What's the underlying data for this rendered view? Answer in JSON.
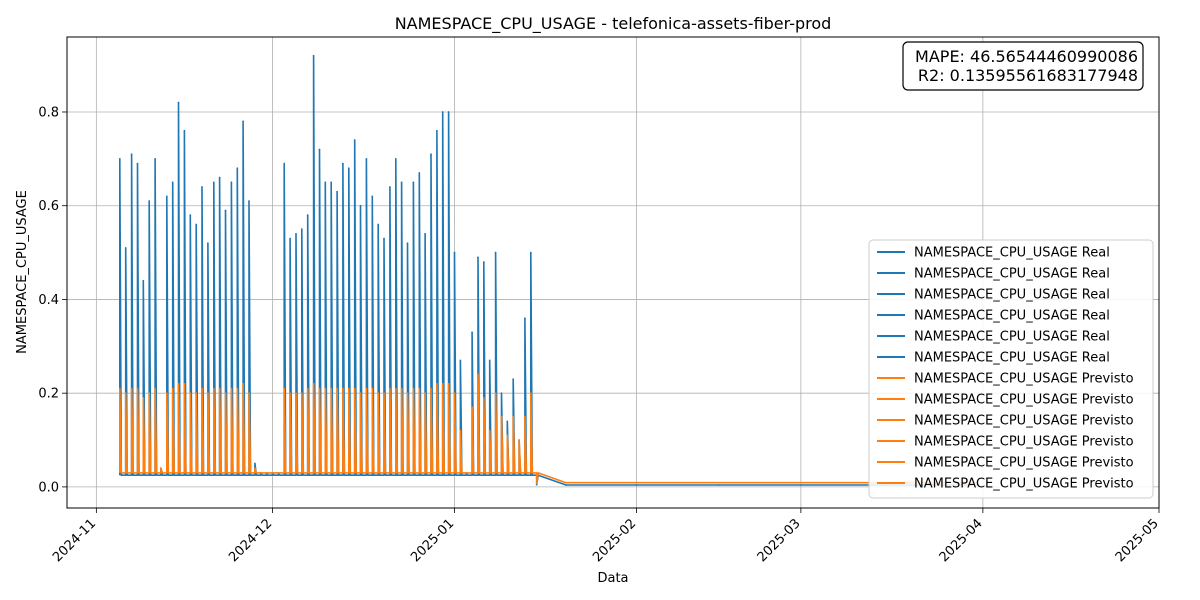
{
  "chart_data": {
    "type": "line",
    "title": "NAMESPACE_CPU_USAGE - telefonica-assets-fiber-prod",
    "xlabel": "Data",
    "ylabel": "NAMESPACE_CPU_USAGE",
    "x_tick_labels": [
      "2024-11",
      "2024-12",
      "2025-01",
      "2025-02",
      "2025-03",
      "2025-04",
      "2025-05"
    ],
    "y_tick_labels": [
      "0.0",
      "0.2",
      "0.4",
      "0.6",
      "0.8"
    ],
    "xlim": [
      "2024-10-27",
      "2025-05-01"
    ],
    "ylim": [
      -0.045,
      0.96
    ],
    "grid": true,
    "legend_placement": "lower right",
    "metrics": {
      "mape": "MAPE: 46.56544460990086",
      "r2": "R2: 0.13595561683177948"
    },
    "colors": {
      "real": "#1f77b4",
      "previsto": "#ff7f0e"
    },
    "legend": [
      "NAMESPACE_CPU_USAGE Real",
      "NAMESPACE_CPU_USAGE Real",
      "NAMESPACE_CPU_USAGE Real",
      "NAMESPACE_CPU_USAGE Real",
      "NAMESPACE_CPU_USAGE Real",
      "NAMESPACE_CPU_USAGE Real",
      "NAMESPACE_CPU_USAGE Previsto",
      "NAMESPACE_CPU_USAGE Previsto",
      "NAMESPACE_CPU_USAGE Previsto",
      "NAMESPACE_CPU_USAGE Previsto",
      "NAMESPACE_CPU_USAGE Previsto",
      "NAMESPACE_CPU_USAGE Previsto"
    ],
    "series": [
      {
        "name": "NAMESPACE_CPU_USAGE Real",
        "color": "#1f77b4",
        "x": [
          "2024-11-05",
          "2024-11-06",
          "2024-11-07",
          "2024-11-08",
          "2024-11-09",
          "2024-11-10",
          "2024-11-11",
          "2024-11-12",
          "2024-11-13",
          "2024-11-14",
          "2024-11-15",
          "2024-11-16",
          "2024-11-17",
          "2024-11-18",
          "2024-11-19",
          "2024-11-20",
          "2024-11-21",
          "2024-11-22",
          "2024-11-23",
          "2024-11-24",
          "2024-11-25",
          "2024-11-26",
          "2024-11-27",
          "2024-11-28",
          "2024-11-29",
          "2024-11-30",
          "2024-12-01",
          "2024-12-02",
          "2024-12-03",
          "2024-12-04",
          "2024-12-05",
          "2024-12-06",
          "2024-12-07",
          "2024-12-08",
          "2024-12-09",
          "2024-12-10",
          "2024-12-11",
          "2024-12-12",
          "2024-12-13",
          "2024-12-14",
          "2024-12-15",
          "2024-12-16",
          "2024-12-17",
          "2024-12-18",
          "2024-12-19",
          "2024-12-20",
          "2024-12-21",
          "2024-12-22",
          "2024-12-23",
          "2024-12-24",
          "2024-12-25",
          "2024-12-26",
          "2024-12-27",
          "2024-12-28",
          "2024-12-29",
          "2024-12-30",
          "2024-12-31",
          "2025-01-01",
          "2025-01-02",
          "2025-01-03",
          "2025-01-04",
          "2025-01-05",
          "2025-01-06",
          "2025-01-07",
          "2025-01-08",
          "2025-01-09",
          "2025-01-10",
          "2025-01-11",
          "2025-01-12",
          "2025-01-13",
          "2025-01-14",
          "2025-01-15",
          "2025-01-20",
          "2025-02-01",
          "2025-02-15",
          "2025-03-01",
          "2025-03-15",
          "2025-03-31"
        ],
        "values": [
          0.7,
          0.51,
          0.71,
          0.69,
          0.44,
          0.61,
          0.7,
          0.04,
          0.62,
          0.65,
          0.82,
          0.76,
          0.58,
          0.56,
          0.64,
          0.52,
          0.65,
          0.66,
          0.59,
          0.65,
          0.68,
          0.78,
          0.61,
          0.05,
          0.03,
          0.03,
          0.03,
          0.03,
          0.69,
          0.53,
          0.54,
          0.55,
          0.58,
          0.92,
          0.72,
          0.65,
          0.65,
          0.63,
          0.69,
          0.68,
          0.74,
          0.6,
          0.7,
          0.62,
          0.56,
          0.53,
          0.64,
          0.7,
          0.65,
          0.52,
          0.65,
          0.67,
          0.54,
          0.71,
          0.76,
          0.8,
          0.8,
          0.5,
          0.27,
          0.03,
          0.33,
          0.49,
          0.48,
          0.27,
          0.5,
          0.2,
          0.14,
          0.23,
          0.1,
          0.36,
          0.5,
          0.005,
          0.004,
          0.004,
          0.004,
          0.004,
          0.004,
          0.004
        ]
      },
      {
        "name": "NAMESPACE_CPU_USAGE Previsto",
        "color": "#ff7f0e",
        "x": [
          "2024-11-05",
          "2024-11-06",
          "2024-11-07",
          "2024-11-08",
          "2024-11-09",
          "2024-11-10",
          "2024-11-11",
          "2024-11-12",
          "2024-11-13",
          "2024-11-14",
          "2024-11-15",
          "2024-11-16",
          "2024-11-17",
          "2024-11-18",
          "2024-11-19",
          "2024-11-20",
          "2024-11-21",
          "2024-11-22",
          "2024-11-23",
          "2024-11-24",
          "2024-11-25",
          "2024-11-26",
          "2024-11-27",
          "2024-11-28",
          "2024-11-29",
          "2024-11-30",
          "2024-12-01",
          "2024-12-02",
          "2024-12-03",
          "2024-12-04",
          "2024-12-05",
          "2024-12-06",
          "2024-12-07",
          "2024-12-08",
          "2024-12-09",
          "2024-12-10",
          "2024-12-11",
          "2024-12-12",
          "2024-12-13",
          "2024-12-14",
          "2024-12-15",
          "2024-12-16",
          "2024-12-17",
          "2024-12-18",
          "2024-12-19",
          "2024-12-20",
          "2024-12-21",
          "2024-12-22",
          "2024-12-23",
          "2024-12-24",
          "2024-12-25",
          "2024-12-26",
          "2024-12-27",
          "2024-12-28",
          "2024-12-29",
          "2024-12-30",
          "2024-12-31",
          "2025-01-01",
          "2025-01-02",
          "2025-01-03",
          "2025-01-04",
          "2025-01-05",
          "2025-01-06",
          "2025-01-07",
          "2025-01-08",
          "2025-01-09",
          "2025-01-10",
          "2025-01-11",
          "2025-01-12",
          "2025-01-13",
          "2025-01-14",
          "2025-01-15",
          "2025-01-20",
          "2025-02-01",
          "2025-02-15",
          "2025-03-01",
          "2025-03-15",
          "2025-03-31"
        ],
        "values": [
          0.21,
          0.2,
          0.21,
          0.21,
          0.19,
          0.2,
          0.21,
          0.04,
          0.2,
          0.21,
          0.22,
          0.22,
          0.2,
          0.2,
          0.21,
          0.2,
          0.21,
          0.21,
          0.2,
          0.21,
          0.21,
          0.22,
          0.2,
          0.04,
          0.03,
          0.03,
          0.03,
          0.03,
          0.21,
          0.2,
          0.2,
          0.2,
          0.21,
          0.22,
          0.21,
          0.21,
          0.21,
          0.21,
          0.21,
          0.21,
          0.21,
          0.2,
          0.21,
          0.21,
          0.2,
          0.2,
          0.21,
          0.21,
          0.21,
          0.2,
          0.21,
          0.21,
          0.2,
          0.21,
          0.22,
          0.22,
          0.22,
          0.2,
          0.12,
          0.03,
          0.17,
          0.24,
          0.19,
          0.12,
          0.2,
          0.15,
          0.11,
          0.15,
          0.1,
          0.15,
          0.2,
          0.008,
          0.009,
          0.009,
          0.009,
          0.009,
          0.009,
          0.009
        ]
      }
    ]
  }
}
